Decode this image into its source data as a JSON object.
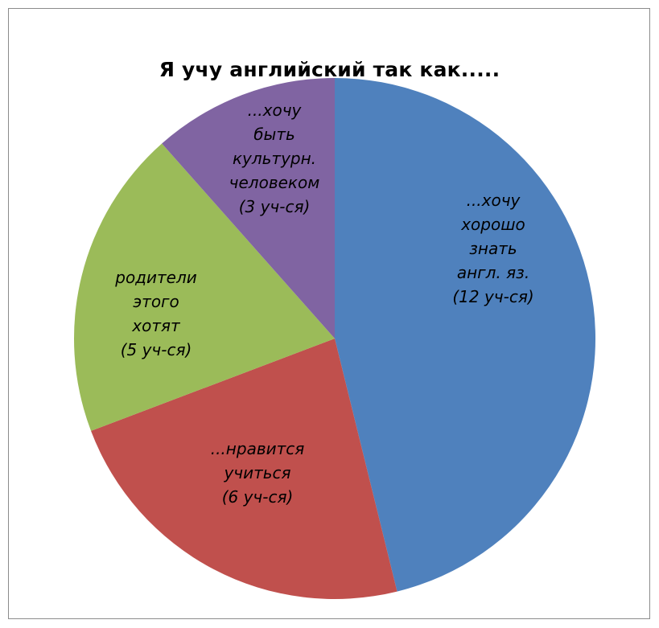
{
  "chart_data": {
    "type": "pie",
    "title": "Я учу английский так как.....",
    "slices": [
      {
        "label_lines": [
          "...хочу",
          "хорошо",
          "знать",
          "англ. яз.",
          "(12 уч-ся)"
        ],
        "value": 12,
        "color": "#4F81BD"
      },
      {
        "label_lines": [
          "...нравится",
          "учиться",
          "(6 уч-ся)"
        ],
        "value": 6,
        "color": "#C0504D"
      },
      {
        "label_lines": [
          "родители",
          "этого",
          "хотят",
          "(5 уч-ся)"
        ],
        "value": 5,
        "color": "#9BBB59"
      },
      {
        "label_lines": [
          "...хочу",
          "быть",
          "культурн.",
          "человеком",
          "(3 уч-ся)"
        ],
        "value": 3,
        "color": "#8064A2"
      }
    ],
    "legend": "none",
    "start_angle": "12 o'clock",
    "direction": "clockwise"
  }
}
